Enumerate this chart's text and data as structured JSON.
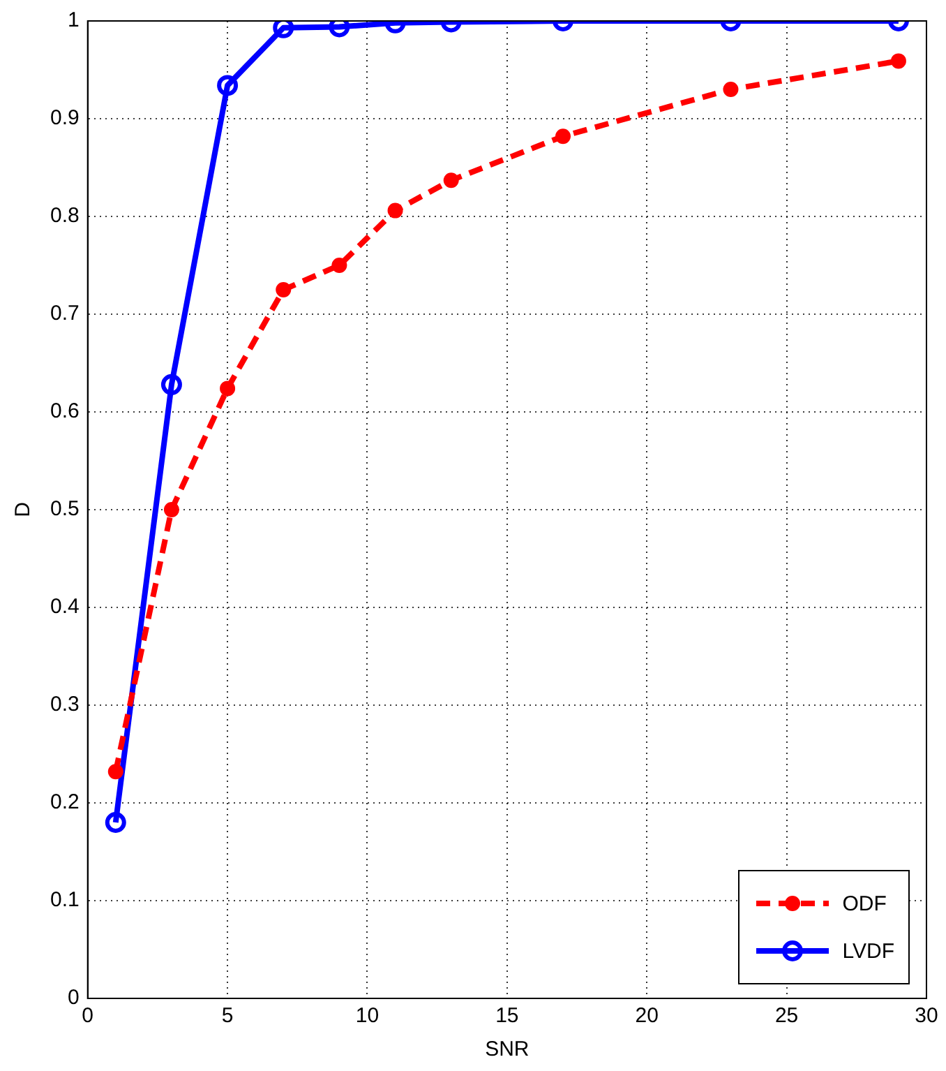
{
  "chart_data": {
    "type": "line",
    "xlabel": "SNR",
    "ylabel": "D",
    "x": [
      1,
      3,
      5,
      7,
      9,
      11,
      13,
      17,
      23,
      29
    ],
    "series": [
      {
        "name": "ODF",
        "color": "#ff0000",
        "marker": "circle",
        "line_style": "dashed",
        "values": [
          0.232,
          0.5,
          0.624,
          0.725,
          0.75,
          0.806,
          0.837,
          0.882,
          0.93,
          0.959
        ]
      },
      {
        "name": "LVDF",
        "color": "#0000ff",
        "marker": "circle",
        "line_style": "solid",
        "values": [
          0.18,
          0.628,
          0.934,
          0.993,
          0.994,
          0.998,
          0.999,
          1,
          1,
          1
        ]
      }
    ],
    "xlim": [
      0,
      30
    ],
    "xticks": [
      0,
      5,
      10,
      15,
      20,
      25,
      30
    ],
    "ylim": [
      0,
      1
    ],
    "yticks": [
      0,
      0.1,
      0.2,
      0.3,
      0.4,
      0.5,
      0.6,
      0.7,
      0.8,
      0.9,
      1
    ],
    "grid": true,
    "legend": "bottom right"
  }
}
